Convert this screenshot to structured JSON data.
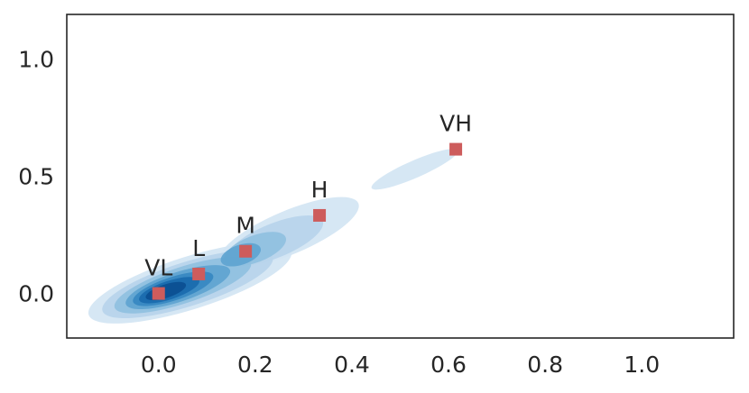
{
  "chart_data": {
    "type": "scatter",
    "title": "",
    "xlabel": "",
    "ylabel": "",
    "xlim": [
      -0.19,
      1.19
    ],
    "ylim": [
      -0.19,
      1.19
    ],
    "x_ticks": [
      {
        "value": 0.0,
        "label": "0.0"
      },
      {
        "value": 0.2,
        "label": "0.2"
      },
      {
        "value": 0.4,
        "label": "0.4"
      },
      {
        "value": 0.6,
        "label": "0.6"
      },
      {
        "value": 0.8,
        "label": "0.8"
      },
      {
        "value": 1.0,
        "label": "1.0"
      }
    ],
    "y_ticks": [
      {
        "value": 0.0,
        "label": "0.0"
      },
      {
        "value": 0.5,
        "label": "0.5"
      },
      {
        "value": 1.0,
        "label": "1.0"
      }
    ],
    "grid": false,
    "legend": "none",
    "points": [
      {
        "label": "VL",
        "x": 0.0,
        "y": 0.0
      },
      {
        "label": "L",
        "x": 0.083,
        "y": 0.083
      },
      {
        "label": "M",
        "x": 0.18,
        "y": 0.18
      },
      {
        "label": "H",
        "x": 0.333,
        "y": 0.333
      },
      {
        "label": "VH",
        "x": 0.615,
        "y": 0.615
      }
    ],
    "marker_color": "#cd5c5c",
    "density_colors": [
      "#e6f0f9",
      "#d3e5f3",
      "#b7d4ea",
      "#8fc0df",
      "#5ea4d0",
      "#3688c1",
      "#1a6aae",
      "#0b4f91"
    ],
    "density": [
      {
        "level": 1,
        "ellipses": [
          {
            "cx": 0.065,
            "cy": 0.045,
            "rx": 0.25,
            "ry": 0.062,
            "angle": 33
          },
          {
            "cx": 0.27,
            "cy": 0.26,
            "rx": 0.19,
            "ry": 0.055,
            "angle": 41
          },
          {
            "cx": 0.53,
            "cy": 0.53,
            "rx": 0.12,
            "ry": 0.022,
            "angle": 42
          }
        ]
      },
      {
        "level": 2,
        "ellipses": [
          {
            "cx": 0.06,
            "cy": 0.04,
            "rx": 0.21,
            "ry": 0.052,
            "angle": 33
          },
          {
            "cx": 0.24,
            "cy": 0.225,
            "rx": 0.13,
            "ry": 0.043,
            "angle": 40
          }
        ]
      },
      {
        "level": 3,
        "ellipses": [
          {
            "cx": 0.05,
            "cy": 0.035,
            "rx": 0.17,
            "ry": 0.043,
            "angle": 34
          },
          {
            "cx": 0.2,
            "cy": 0.19,
            "rx": 0.08,
            "ry": 0.033,
            "angle": 38
          }
        ]
      },
      {
        "level": 4,
        "ellipses": [
          {
            "cx": 0.04,
            "cy": 0.027,
            "rx": 0.13,
            "ry": 0.035,
            "angle": 34
          },
          {
            "cx": 0.17,
            "cy": 0.165,
            "rx": 0.05,
            "ry": 0.024,
            "angle": 35
          }
        ]
      },
      {
        "level": 5,
        "ellipses": [
          {
            "cx": 0.03,
            "cy": 0.02,
            "rx": 0.1,
            "ry": 0.028,
            "angle": 34
          }
        ]
      },
      {
        "level": 6,
        "ellipses": [
          {
            "cx": 0.022,
            "cy": 0.014,
            "rx": 0.075,
            "ry": 0.022,
            "angle": 34
          }
        ]
      },
      {
        "level": 7,
        "ellipses": [
          {
            "cx": 0.015,
            "cy": 0.01,
            "rx": 0.05,
            "ry": 0.016,
            "angle": 34
          }
        ]
      }
    ]
  }
}
